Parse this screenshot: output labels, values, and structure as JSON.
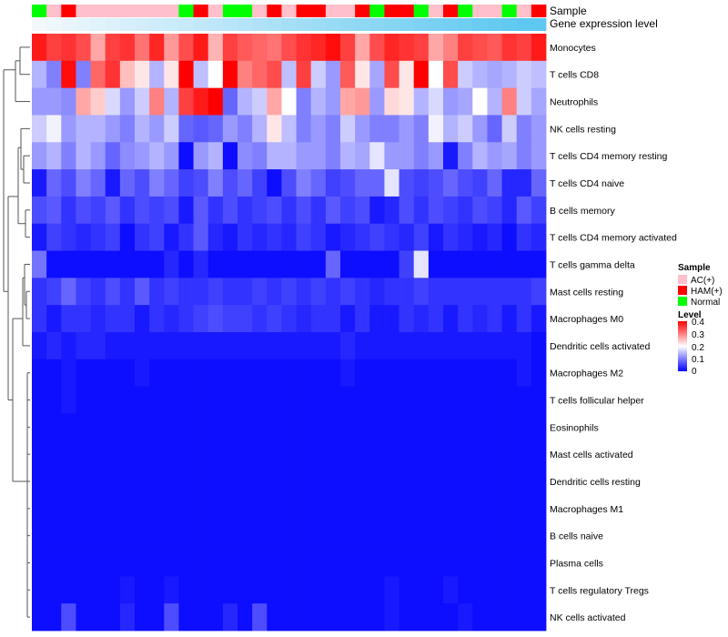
{
  "chart_data": {
    "type": "heatmap",
    "title": "",
    "row_labels": [
      "Monocytes",
      "T cells CD8",
      "Neutrophils",
      "NK cells resting",
      "T cells CD4 memory resting",
      "T cells CD4 naive",
      "B cells memory",
      "T cells CD4 memory activated",
      "T cells gamma delta",
      "Mast cells resting",
      "Macrophages M0",
      "Dendritic cells activated",
      "Macrophages M2",
      "T cells follicular helper",
      "Eosinophils",
      "Mast cells activated",
      "Dendritic cells resting",
      "Macrophages M1",
      "B cells naive",
      "Plasma cells",
      "T cells regulatory  Tregs",
      "NK cells activated"
    ],
    "annotations": {
      "sample": {
        "label": "Sample",
        "groups": [
          "Normal",
          "AC(+)",
          "HAM(+)",
          "AC(+)",
          "AC(+)",
          "AC(+)",
          "AC(+)",
          "AC(+)",
          "AC(+)",
          "AC(+)",
          "Normal",
          "HAM(+)",
          "AC(+)",
          "Normal",
          "Normal",
          "AC(+)",
          "HAM(+)",
          "AC(+)",
          "HAM(+)",
          "HAM(+)",
          "AC(+)",
          "AC(+)",
          "HAM(+)",
          "Normal",
          "HAM(+)",
          "HAM(+)",
          "Normal",
          "AC(+)",
          "HAM(+)",
          "Normal",
          "AC(+)",
          "AC(+)",
          "Normal",
          "AC(+)",
          "HAM(+)"
        ]
      },
      "gene_expression": {
        "label": "Gene expression level",
        "values": [
          0.0,
          0.03,
          0.06,
          0.09,
          0.12,
          0.15,
          0.18,
          0.21,
          0.24,
          0.27,
          0.3,
          0.33,
          0.36,
          0.39,
          0.42,
          0.45,
          0.48,
          0.52,
          0.55,
          0.58,
          0.61,
          0.64,
          0.67,
          0.7,
          0.73,
          0.76,
          0.79,
          0.82,
          0.85,
          0.88,
          0.91,
          0.94,
          0.97,
          0.99,
          1.0
        ]
      }
    },
    "values": [
      [
        0.38,
        0.35,
        0.36,
        0.34,
        0.27,
        0.35,
        0.36,
        0.31,
        0.37,
        0.28,
        0.34,
        0.38,
        0.26,
        0.35,
        0.33,
        0.32,
        0.31,
        0.34,
        0.36,
        0.37,
        0.39,
        0.35,
        0.27,
        0.34,
        0.37,
        0.36,
        0.35,
        0.27,
        0.3,
        0.35,
        0.34,
        0.33,
        0.36,
        0.35,
        0.38
      ],
      [
        0.14,
        0.1,
        0.39,
        0.1,
        0.32,
        0.36,
        0.25,
        0.22,
        0.14,
        0.22,
        0.4,
        0.15,
        0.2,
        0.4,
        0.3,
        0.32,
        0.34,
        0.15,
        0.35,
        0.16,
        0.12,
        0.33,
        0.22,
        0.13,
        0.34,
        0.22,
        0.4,
        0.2,
        0.34,
        0.16,
        0.14,
        0.13,
        0.14,
        0.16,
        0.15
      ],
      [
        0.12,
        0.12,
        0.11,
        0.27,
        0.24,
        0.17,
        0.12,
        0.16,
        0.3,
        0.14,
        0.35,
        0.38,
        0.4,
        0.08,
        0.14,
        0.16,
        0.27,
        0.2,
        0.1,
        0.14,
        0.12,
        0.27,
        0.28,
        0.12,
        0.23,
        0.22,
        0.14,
        0.17,
        0.12,
        0.13,
        0.2,
        0.14,
        0.3,
        0.16,
        0.13
      ],
      [
        0.16,
        0.19,
        0.12,
        0.14,
        0.14,
        0.12,
        0.1,
        0.14,
        0.12,
        0.16,
        0.08,
        0.07,
        0.08,
        0.12,
        0.1,
        0.14,
        0.22,
        0.15,
        0.1,
        0.12,
        0.1,
        0.16,
        0.12,
        0.1,
        0.1,
        0.12,
        0.1,
        0.19,
        0.14,
        0.16,
        0.12,
        0.08,
        0.16,
        0.1,
        0.12
      ],
      [
        0.12,
        0.14,
        0.1,
        0.14,
        0.12,
        0.08,
        0.11,
        0.12,
        0.14,
        0.12,
        0.01,
        0.12,
        0.14,
        0.01,
        0.11,
        0.1,
        0.14,
        0.14,
        0.12,
        0.12,
        0.1,
        0.14,
        0.13,
        0.18,
        0.12,
        0.12,
        0.1,
        0.12,
        0.02,
        0.1,
        0.14,
        0.12,
        0.13,
        0.1,
        0.12
      ],
      [
        0.02,
        0.08,
        0.06,
        0.1,
        0.08,
        0.02,
        0.08,
        0.06,
        0.1,
        0.08,
        0.05,
        0.06,
        0.1,
        0.06,
        0.08,
        0.05,
        0.01,
        0.06,
        0.1,
        0.08,
        0.05,
        0.06,
        0.08,
        0.08,
        0.18,
        0.06,
        0.05,
        0.06,
        0.08,
        0.06,
        0.05,
        0.08,
        0.03,
        0.03,
        0.08
      ],
      [
        0.06,
        0.07,
        0.04,
        0.06,
        0.05,
        0.07,
        0.04,
        0.06,
        0.05,
        0.06,
        0.02,
        0.07,
        0.04,
        0.06,
        0.04,
        0.05,
        0.06,
        0.04,
        0.06,
        0.04,
        0.07,
        0.05,
        0.06,
        0.02,
        0.03,
        0.06,
        0.04,
        0.06,
        0.05,
        0.04,
        0.06,
        0.05,
        0.03,
        0.07,
        0.05
      ],
      [
        0.02,
        0.05,
        0.04,
        0.03,
        0.04,
        0.05,
        0.01,
        0.04,
        0.05,
        0.02,
        0.04,
        0.07,
        0.03,
        0.02,
        0.04,
        0.03,
        0.04,
        0.03,
        0.05,
        0.04,
        0.02,
        0.03,
        0.04,
        0.05,
        0.04,
        0.03,
        0.05,
        0.02,
        0.04,
        0.03,
        0.02,
        0.03,
        0.01,
        0.04,
        0.03
      ],
      [
        0.09,
        0.01,
        0.01,
        0.01,
        0.01,
        0.01,
        0.01,
        0.01,
        0.01,
        0.03,
        0.01,
        0.03,
        0.01,
        0.01,
        0.01,
        0.01,
        0.01,
        0.01,
        0.01,
        0.01,
        0.08,
        0.01,
        0.01,
        0.01,
        0.01,
        0.05,
        0.18,
        0.01,
        0.01,
        0.01,
        0.01,
        0.01,
        0.01,
        0.01,
        0.01
      ],
      [
        0.04,
        0.05,
        0.08,
        0.05,
        0.04,
        0.06,
        0.04,
        0.07,
        0.04,
        0.05,
        0.04,
        0.04,
        0.05,
        0.04,
        0.04,
        0.05,
        0.04,
        0.05,
        0.04,
        0.05,
        0.04,
        0.05,
        0.04,
        0.03,
        0.04,
        0.04,
        0.05,
        0.04,
        0.04,
        0.04,
        0.04,
        0.04,
        0.04,
        0.04,
        0.05
      ],
      [
        0.04,
        0.02,
        0.04,
        0.04,
        0.03,
        0.04,
        0.04,
        0.02,
        0.04,
        0.03,
        0.04,
        0.05,
        0.06,
        0.05,
        0.05,
        0.04,
        0.05,
        0.04,
        0.03,
        0.04,
        0.04,
        0.02,
        0.04,
        0.02,
        0.02,
        0.04,
        0.03,
        0.04,
        0.02,
        0.04,
        0.03,
        0.04,
        0.02,
        0.04,
        0.02
      ],
      [
        0.02,
        0.03,
        0.02,
        0.03,
        0.03,
        0.02,
        0.02,
        0.02,
        0.02,
        0.02,
        0.02,
        0.02,
        0.02,
        0.02,
        0.02,
        0.02,
        0.02,
        0.02,
        0.02,
        0.02,
        0.02,
        0.03,
        0.02,
        0.02,
        0.02,
        0.02,
        0.02,
        0.02,
        0.02,
        0.02,
        0.02,
        0.02,
        0.02,
        0.02,
        0.01
      ],
      [
        0.01,
        0.01,
        0.02,
        0.01,
        0.01,
        0.01,
        0.01,
        0.02,
        0.01,
        0.01,
        0.01,
        0.01,
        0.01,
        0.01,
        0.01,
        0.01,
        0.01,
        0.01,
        0.01,
        0.01,
        0.01,
        0.02,
        0.01,
        0.01,
        0.01,
        0.01,
        0.01,
        0.01,
        0.01,
        0.01,
        0.01,
        0.01,
        0.01,
        0.02,
        0.01
      ],
      [
        0.01,
        0.01,
        0.02,
        0.01,
        0.01,
        0.01,
        0.01,
        0.01,
        0.01,
        0.01,
        0.01,
        0.01,
        0.01,
        0.01,
        0.01,
        0.01,
        0.01,
        0.01,
        0.01,
        0.01,
        0.01,
        0.01,
        0.01,
        0.01,
        0.01,
        0.01,
        0.01,
        0.01,
        0.01,
        0.01,
        0.01,
        0.01,
        0.01,
        0.01,
        0.01
      ],
      [
        0.01,
        0.01,
        0.01,
        0.01,
        0.01,
        0.01,
        0.01,
        0.01,
        0.01,
        0.01,
        0.01,
        0.01,
        0.01,
        0.01,
        0.01,
        0.01,
        0.01,
        0.01,
        0.01,
        0.01,
        0.01,
        0.01,
        0.01,
        0.01,
        0.01,
        0.01,
        0.01,
        0.01,
        0.01,
        0.01,
        0.01,
        0.01,
        0.01,
        0.01,
        0.01
      ],
      [
        0.01,
        0.01,
        0.01,
        0.01,
        0.01,
        0.01,
        0.01,
        0.01,
        0.01,
        0.01,
        0.01,
        0.01,
        0.01,
        0.01,
        0.01,
        0.01,
        0.01,
        0.01,
        0.01,
        0.01,
        0.01,
        0.01,
        0.01,
        0.01,
        0.01,
        0.01,
        0.01,
        0.01,
        0.01,
        0.01,
        0.01,
        0.01,
        0.01,
        0.01,
        0.01
      ],
      [
        0.01,
        0.01,
        0.01,
        0.01,
        0.01,
        0.01,
        0.01,
        0.01,
        0.01,
        0.01,
        0.01,
        0.01,
        0.01,
        0.01,
        0.01,
        0.01,
        0.01,
        0.01,
        0.01,
        0.01,
        0.01,
        0.01,
        0.01,
        0.01,
        0.01,
        0.01,
        0.01,
        0.01,
        0.01,
        0.01,
        0.01,
        0.01,
        0.01,
        0.01,
        0.01
      ],
      [
        0.01,
        0.01,
        0.01,
        0.01,
        0.01,
        0.01,
        0.01,
        0.01,
        0.01,
        0.01,
        0.01,
        0.01,
        0.01,
        0.01,
        0.01,
        0.01,
        0.01,
        0.01,
        0.01,
        0.01,
        0.01,
        0.01,
        0.01,
        0.01,
        0.01,
        0.01,
        0.01,
        0.01,
        0.01,
        0.01,
        0.01,
        0.01,
        0.01,
        0.01,
        0.01
      ],
      [
        0.01,
        0.01,
        0.01,
        0.01,
        0.01,
        0.01,
        0.01,
        0.01,
        0.01,
        0.01,
        0.01,
        0.01,
        0.01,
        0.01,
        0.01,
        0.01,
        0.01,
        0.01,
        0.01,
        0.01,
        0.01,
        0.01,
        0.01,
        0.01,
        0.01,
        0.01,
        0.01,
        0.01,
        0.01,
        0.01,
        0.01,
        0.01,
        0.01,
        0.01,
        0.01
      ],
      [
        0.01,
        0.01,
        0.01,
        0.01,
        0.01,
        0.01,
        0.01,
        0.01,
        0.01,
        0.01,
        0.01,
        0.01,
        0.01,
        0.01,
        0.01,
        0.01,
        0.01,
        0.01,
        0.01,
        0.01,
        0.01,
        0.01,
        0.01,
        0.01,
        0.01,
        0.01,
        0.01,
        0.01,
        0.01,
        0.01,
        0.01,
        0.01,
        0.01,
        0.01,
        0.01
      ],
      [
        0.01,
        0.01,
        0.01,
        0.01,
        0.01,
        0.01,
        0.02,
        0.01,
        0.01,
        0.02,
        0.01,
        0.01,
        0.01,
        0.01,
        0.01,
        0.01,
        0.01,
        0.01,
        0.01,
        0.01,
        0.01,
        0.01,
        0.01,
        0.01,
        0.02,
        0.01,
        0.01,
        0.01,
        0.02,
        0.01,
        0.01,
        0.01,
        0.01,
        0.01,
        0.01
      ],
      [
        0.01,
        0.01,
        0.06,
        0.01,
        0.01,
        0.01,
        0.03,
        0.01,
        0.01,
        0.06,
        0.01,
        0.01,
        0.01,
        0.03,
        0.01,
        0.06,
        0.01,
        0.01,
        0.01,
        0.01,
        0.01,
        0.01,
        0.01,
        0.01,
        0.02,
        0.01,
        0.01,
        0.01,
        0.01,
        0.02,
        0.01,
        0.01,
        0.01,
        0.01,
        0.01
      ]
    ],
    "color_scale": {
      "min": 0,
      "max": 0.4,
      "low": "#0000ff",
      "mid": "#ffffff",
      "high": "#ff0000",
      "mid_value": 0.2
    },
    "sample_colors": {
      "AC(+)": "#ffc0cb",
      "HAM(+)": "#ff0000",
      "Normal": "#00ff00"
    },
    "expression_colors": {
      "low": "#f2f8fc",
      "high": "#5ec8f0"
    },
    "dendrogram_color": "#555555",
    "legend": {
      "sample_title": "Sample",
      "sample_entries": [
        "AC(+)",
        "HAM(+)",
        "Normal"
      ],
      "level_title": "Level",
      "level_ticks": [
        "0.4",
        "0.3",
        "0.2",
        "0.1",
        "0"
      ],
      "position": "right"
    }
  }
}
